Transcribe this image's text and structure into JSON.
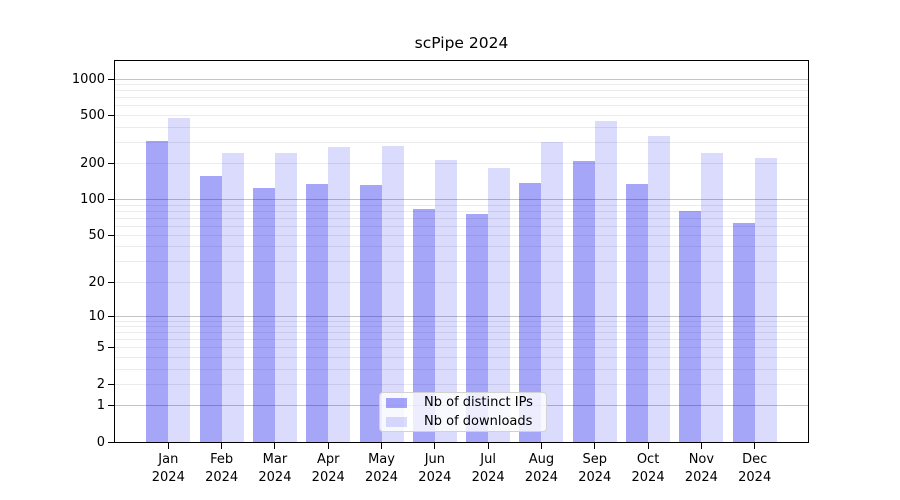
{
  "chart_data": {
    "type": "bar",
    "title": "scPipe 2024",
    "categories": [
      "Jan",
      "Feb",
      "Mar",
      "Apr",
      "May",
      "Jun",
      "Jul",
      "Aug",
      "Sep",
      "Oct",
      "Nov",
      "Dec"
    ],
    "year_label": "2024",
    "series": [
      {
        "name": "Nb of distinct IPs",
        "color": "rgba(0,0,238,0.35)",
        "values": [
          305,
          157,
          125,
          136,
          133,
          84,
          76,
          137,
          208,
          135,
          81,
          64
        ]
      },
      {
        "name": "Nb of downloads",
        "color": "rgba(0,0,238,0.14)",
        "values": [
          480,
          244,
          246,
          275,
          280,
          214,
          184,
          302,
          450,
          340,
          243,
          221
        ]
      }
    ],
    "yscale": "log1p",
    "ylim": [
      0,
      1410
    ],
    "yticks": [
      0,
      1,
      2,
      5,
      10,
      20,
      50,
      100,
      200,
      500,
      1000
    ],
    "gridlines": {
      "major": [
        1,
        10,
        100,
        1000
      ],
      "minor": [
        2,
        3,
        4,
        5,
        6,
        7,
        8,
        9,
        20,
        30,
        40,
        50,
        60,
        70,
        80,
        90,
        200,
        300,
        400,
        500,
        600,
        700,
        800,
        900
      ]
    },
    "legend_position": "lower center-left",
    "grid": true
  },
  "colors": {
    "grid_major": "#c4c4c4",
    "grid_minor": "#ebebeb",
    "axis": "#000000",
    "text": "#000000",
    "legend_bg": "rgba(255,255,255,0.8)",
    "legend_border": "#d2d2d2"
  }
}
